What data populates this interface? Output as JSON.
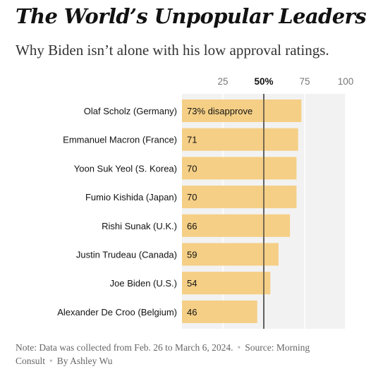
{
  "title": "The World’s Unpopular Leaders",
  "subtitle": "Why Biden isn’t alone with his low approval ratings.",
  "chart_data": {
    "type": "bar",
    "orientation": "horizontal",
    "categories": [
      "Olaf Scholz (Germany)",
      "Emmanuel Macron (France)",
      "Yoon Suk Yeol (S. Korea)",
      "Fumio Kishida (Japan)",
      "Rishi Sunak (U.K.)",
      "Justin Trudeau (Canada)",
      "Joe Biden (U.S.)",
      "Alexander De Croo (Belgium)"
    ],
    "values": [
      73,
      71,
      70,
      70,
      66,
      59,
      54,
      46
    ],
    "value_labels": [
      "73% disapprove",
      "71",
      "70",
      "70",
      "66",
      "59",
      "54",
      "46"
    ],
    "xlim": [
      0,
      100
    ],
    "ticks": [
      25,
      50,
      75,
      100
    ],
    "tick_labels": [
      "25",
      "50%",
      "75",
      "100"
    ],
    "highlight_tick": 50,
    "grid": true,
    "bar_color": "#f5cf86",
    "background_color": "#f2f2f2",
    "text_color": "#121212",
    "tick_color": "#777777"
  },
  "note": {
    "data_note": "Note: Data was collected from Feb. 26 to March 6, 2024.",
    "source": "Source: Morning Consult",
    "byline": "By Ashley Wu"
  }
}
